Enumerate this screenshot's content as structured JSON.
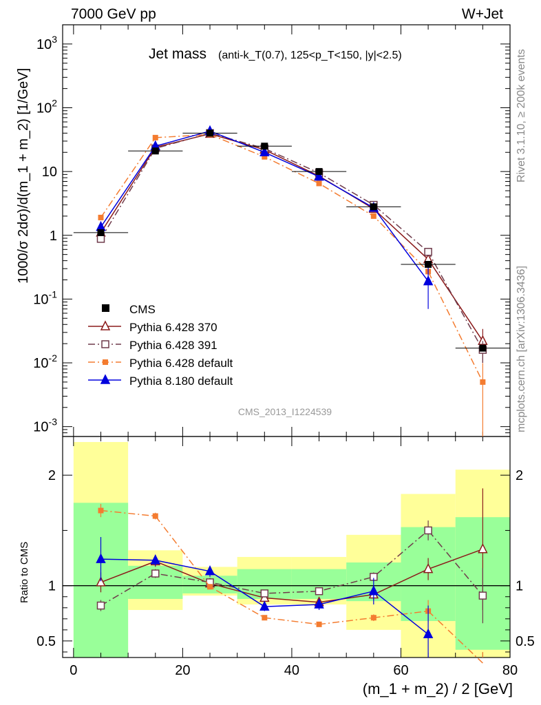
{
  "header": {
    "energy_label": "7000 GeV pp",
    "process_label": "W+Jet",
    "title_main": "Jet mass",
    "title_detail": "(anti-k_T(0.7), 125<p_T<150, |y|<2.5)",
    "analysis_id": "CMS_2013_I1224539",
    "side_label_top": "Rivet 3.1.10, ≥ 200k events",
    "side_label_bottom": "mcplots.cern.ch [arXiv:1306.3436]"
  },
  "chart_data": [
    {
      "type": "line",
      "panel": "main",
      "ylabel": "1000/σ 2dσ)/d(m_1 + m_2) [1/GeV]",
      "yscale": "log",
      "ylim": [
        0.0007,
        2000
      ],
      "xlim": [
        -2,
        80
      ],
      "ytick_labels": [
        "10^-3",
        "10^-2",
        "10^-1",
        "1",
        "10",
        "10^2",
        "10^3"
      ],
      "x": [
        5,
        15,
        25,
        35,
        45,
        55,
        65,
        75
      ],
      "reference": {
        "name": "CMS",
        "values": [
          1.1,
          21,
          40,
          25,
          10,
          2.8,
          0.35,
          0.017
        ],
        "bin_widths": [
          10,
          10,
          10,
          10,
          10,
          10,
          10,
          10
        ]
      },
      "series": [
        {
          "name": "Pythia 6.428 370",
          "color": "#8b1a1a",
          "style": "solid",
          "marker": "open-triangle",
          "values": [
            1.1,
            24,
            39,
            22,
            8.5,
            2.6,
            0.42,
            0.022
          ],
          "errors": [
            0.1,
            1.0,
            1.5,
            1.0,
            0.4,
            0.2,
            0.08,
            0.012
          ]
        },
        {
          "name": "Pythia 6.428 391",
          "color": "#6e3a4a",
          "style": "dashdot",
          "marker": "open-square",
          "values": [
            0.88,
            23,
            40,
            23,
            9.5,
            3.0,
            0.55,
            0.016
          ],
          "errors": [
            0.08,
            1.0,
            1.5,
            1.0,
            0.4,
            0.2,
            0.08,
            0.006
          ]
        },
        {
          "name": "Pythia 6.428 default",
          "color": "#f47c30",
          "style": "dashdot",
          "marker": "filled-square",
          "values": [
            1.9,
            34,
            38,
            17,
            6.5,
            2.0,
            0.27,
            0.005
          ],
          "errors": [
            0.1,
            1.2,
            1.5,
            0.8,
            0.3,
            0.15,
            0.05,
            0.0049
          ]
        },
        {
          "name": "Pythia 8.180 default",
          "color": "#0000dd",
          "style": "solid",
          "marker": "filled-triangle",
          "values": [
            1.35,
            25,
            43,
            20,
            8.3,
            2.7,
            0.19,
            null
          ],
          "errors": [
            0.3,
            1.5,
            2.0,
            1.5,
            0.7,
            0.35,
            0.12,
            null
          ]
        }
      ]
    },
    {
      "type": "line",
      "panel": "ratio",
      "ylabel": "Ratio to CMS",
      "xlabel": "(m_1 + m_2) / 2 [GeV]",
      "ylim": [
        0.35,
        2.35
      ],
      "xlim": [
        -2,
        80
      ],
      "ytick_labels": [
        "0.5",
        "1",
        "2"
      ],
      "xtick_labels": [
        "0",
        "20",
        "40",
        "60",
        "80"
      ],
      "bands": {
        "edges": [
          0,
          10,
          20,
          30,
          40,
          50,
          60,
          70,
          80
        ],
        "green_lo": [
          0.3,
          0.88,
          0.93,
          0.88,
          0.88,
          0.86,
          0.68,
          0.42
        ],
        "green_hi": [
          1.75,
          1.18,
          1.09,
          1.15,
          1.15,
          1.21,
          1.53,
          1.62
        ],
        "yellow_lo": [
          0.3,
          0.78,
          0.91,
          0.83,
          0.83,
          0.6,
          0.3,
          0.3
        ],
        "yellow_hi": [
          2.3,
          1.32,
          1.17,
          1.26,
          1.26,
          1.46,
          1.83,
          2.05
        ]
      },
      "series": [
        {
          "name": "Pythia 6.428 370",
          "values": [
            1.03,
            1.22,
            1.02,
            0.89,
            0.85,
            0.92,
            1.15,
            1.33
          ],
          "errors": [
            0.09,
            0.05,
            0.03,
            0.04,
            0.04,
            0.05,
            0.1,
            0.55
          ]
        },
        {
          "name": "Pythia 6.428 391",
          "values": [
            0.82,
            1.11,
            1.03,
            0.93,
            0.95,
            1.08,
            1.5,
            0.91
          ],
          "errors": [
            0.05,
            0.04,
            0.02,
            0.02,
            0.02,
            0.04,
            0.09,
            0.25
          ]
        },
        {
          "name": "Pythia 6.428 default",
          "values": [
            1.68,
            1.63,
            0.99,
            0.71,
            0.65,
            0.71,
            0.77,
            0.3
          ],
          "errors": [
            0.06,
            0.03,
            0.02,
            0.02,
            0.02,
            0.03,
            0.1,
            0.1
          ]
        },
        {
          "name": "Pythia 8.180 default",
          "values": [
            1.24,
            1.23,
            1.13,
            0.81,
            0.83,
            0.95,
            0.56,
            null
          ],
          "errors": [
            0.2,
            0.05,
            0.05,
            0.04,
            0.05,
            0.12,
            0.26,
            null
          ]
        }
      ]
    }
  ]
}
